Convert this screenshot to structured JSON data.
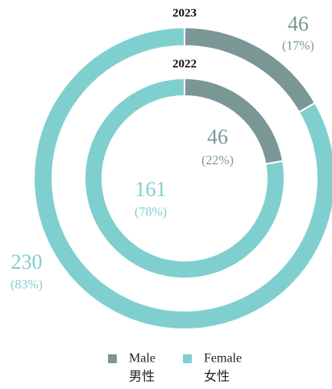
{
  "chart_data": {
    "type": "donut",
    "categories": [
      "Male",
      "Female"
    ],
    "categories_zh": [
      "男性",
      "女性"
    ],
    "colors": [
      "#7a9796",
      "#80cfcf"
    ],
    "rings": [
      {
        "name": "2023",
        "values": [
          46,
          230
        ],
        "percents": [
          17,
          83
        ],
        "percent_labels": [
          "(17%)",
          "(83%)"
        ]
      },
      {
        "name": "2022",
        "values": [
          46,
          161
        ],
        "percents": [
          22,
          78
        ],
        "percent_labels": [
          "(22%)",
          "(78%)"
        ]
      }
    ]
  }
}
